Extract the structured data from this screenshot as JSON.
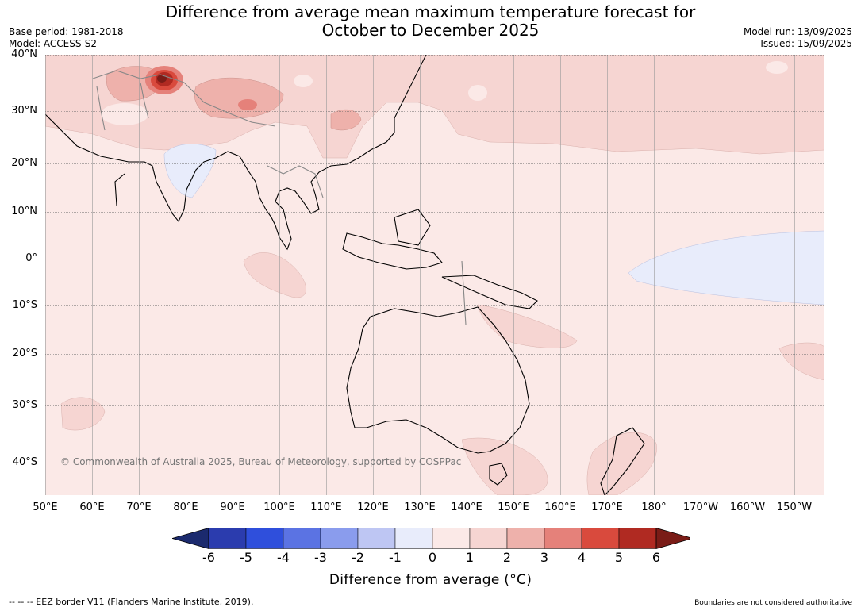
{
  "title": {
    "line1": "Difference from average mean maximum temperature forecast for",
    "line2": "October to December 2025"
  },
  "meta_left": {
    "base_period": "Base period: 1981-2018",
    "model": "Model: ACCESS-S2"
  },
  "meta_right": {
    "model_run": "Model run: 13/09/2025",
    "issued": "Issued: 15/09/2025"
  },
  "map": {
    "lat_labels": [
      "40°N",
      "30°N",
      "20°N",
      "10°N",
      "0°",
      "10°S",
      "20°S",
      "30°S",
      "40°S"
    ],
    "lon_labels": [
      "50°E",
      "60°E",
      "70°E",
      "80°E",
      "90°E",
      "100°E",
      "110°E",
      "120°E",
      "130°E",
      "140°E",
      "150°E",
      "160°E",
      "170°E",
      "180°",
      "170°W",
      "160°W",
      "150°W"
    ],
    "copyright": "© Commonwealth of Australia 2025, Bureau of Meteorology, supported by COSPPac"
  },
  "colorbar": {
    "ticks": [
      "-6",
      "-5",
      "-4",
      "-3",
      "-2",
      "-1",
      "0",
      "1",
      "2",
      "3",
      "4",
      "5",
      "6"
    ],
    "colors": [
      "#1b2a6e",
      "#2b3cae",
      "#2f4fdc",
      "#5b73e3",
      "#8a9ced",
      "#bec6f3",
      "#e8ecfb",
      "#fbe9e7",
      "#f6d5d2",
      "#eeb1ab",
      "#e5817a",
      "#d94a3d",
      "#b02a22",
      "#7a1c17"
    ],
    "label": "Difference from average (°C)"
  },
  "footer": {
    "left": "-- -- -- EEZ border V11 (Flanders Marine Institute, 2019).",
    "right": "Boundaries are not considered authoritative"
  }
}
